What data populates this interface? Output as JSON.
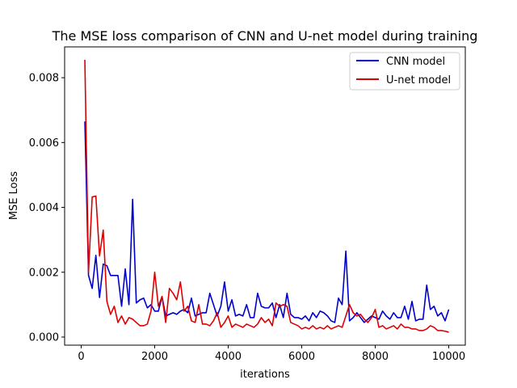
{
  "chart_data": {
    "type": "line",
    "title": "The MSE loss comparison of CNN and U-net model during training",
    "xlabel": "iterations",
    "ylabel": "MSE Loss",
    "xlim": [
      -450,
      10450
    ],
    "ylim": [
      -0.00025,
      0.00895
    ],
    "xticks": [
      0,
      2000,
      4000,
      6000,
      8000,
      10000
    ],
    "yticks": [
      0.0,
      0.002,
      0.004,
      0.006,
      0.008
    ],
    "xtick_labels": [
      "0",
      "2000",
      "4000",
      "6000",
      "8000",
      "10000"
    ],
    "ytick_labels": [
      "0.000",
      "0.002",
      "0.004",
      "0.006",
      "0.008"
    ],
    "grid": false,
    "legend_position": "top-right",
    "x": [
      100,
      200,
      300,
      400,
      500,
      600,
      700,
      800,
      900,
      1000,
      1100,
      1200,
      1300,
      1400,
      1500,
      1600,
      1700,
      1800,
      1900,
      2000,
      2100,
      2200,
      2300,
      2400,
      2500,
      2600,
      2700,
      2800,
      2900,
      3000,
      3100,
      3200,
      3300,
      3400,
      3500,
      3600,
      3700,
      3800,
      3900,
      4000,
      4100,
      4200,
      4300,
      4400,
      4500,
      4600,
      4700,
      4800,
      4900,
      5000,
      5100,
      5200,
      5300,
      5400,
      5500,
      5600,
      5700,
      5800,
      5900,
      6000,
      6100,
      6200,
      6300,
      6400,
      6500,
      6600,
      6700,
      6800,
      6900,
      7000,
      7100,
      7200,
      7300,
      7400,
      7500,
      7600,
      7700,
      7800,
      7900,
      8000,
      8100,
      8200,
      8300,
      8400,
      8500,
      8600,
      8700,
      8800,
      8900,
      9000,
      9100,
      9200,
      9300,
      9400,
      9500,
      9600,
      9700,
      9800,
      9900,
      10000
    ],
    "series": [
      {
        "name": "CNN model",
        "color": "#0000cc",
        "values": [
          0.00665,
          0.0019,
          0.0015,
          0.00252,
          0.00122,
          0.00225,
          0.0022,
          0.0019,
          0.0019,
          0.0019,
          0.00095,
          0.0021,
          0.001,
          0.00425,
          0.00105,
          0.00115,
          0.0012,
          0.0009,
          0.001,
          0.0008,
          0.0008,
          0.00125,
          0.00065,
          0.0007,
          0.00075,
          0.0007,
          0.0008,
          0.00085,
          0.00075,
          0.0012,
          0.00065,
          0.0007,
          0.00075,
          0.00075,
          0.00135,
          0.001,
          0.00065,
          0.00095,
          0.0017,
          0.0008,
          0.00115,
          0.00065,
          0.0007,
          0.00065,
          0.001,
          0.0006,
          0.0006,
          0.00135,
          0.00095,
          0.0009,
          0.0009,
          0.00105,
          0.0006,
          0.001,
          0.0006,
          0.00135,
          0.0007,
          0.0006,
          0.0006,
          0.00055,
          0.00065,
          0.0005,
          0.00075,
          0.0006,
          0.0008,
          0.00075,
          0.00065,
          0.0005,
          0.00045,
          0.0012,
          0.001,
          0.00265,
          0.0005,
          0.0006,
          0.00075,
          0.0006,
          0.00045,
          0.00055,
          0.00065,
          0.0006,
          0.00055,
          0.0008,
          0.00065,
          0.00055,
          0.00075,
          0.0006,
          0.0006,
          0.00095,
          0.00055,
          0.0011,
          0.0005,
          0.00055,
          0.00055,
          0.0016,
          0.00085,
          0.00095,
          0.00065,
          0.00075,
          0.0005,
          0.00085
        ]
      },
      {
        "name": "U-net model",
        "color": "#dd0000",
        "values": [
          0.00855,
          0.002,
          0.00432,
          0.00435,
          0.0025,
          0.0033,
          0.0011,
          0.0007,
          0.00095,
          0.00045,
          0.00065,
          0.0004,
          0.0006,
          0.00055,
          0.00045,
          0.00035,
          0.00035,
          0.0004,
          0.0008,
          0.002,
          0.00095,
          0.00125,
          0.00045,
          0.0015,
          0.00135,
          0.00115,
          0.0017,
          0.0008,
          0.00095,
          0.0005,
          0.00045,
          0.001,
          0.0004,
          0.0004,
          0.00035,
          0.0005,
          0.00075,
          0.0003,
          0.00045,
          0.00065,
          0.0003,
          0.0004,
          0.00035,
          0.0003,
          0.0004,
          0.00035,
          0.0003,
          0.0004,
          0.0006,
          0.00045,
          0.00055,
          0.00035,
          0.00105,
          0.00095,
          0.001,
          0.00095,
          0.00045,
          0.0004,
          0.00035,
          0.00025,
          0.0003,
          0.00025,
          0.00035,
          0.00025,
          0.0003,
          0.00025,
          0.00035,
          0.00025,
          0.0003,
          0.00035,
          0.0003,
          0.00065,
          0.001,
          0.00075,
          0.00065,
          0.0007,
          0.00055,
          0.00045,
          0.0006,
          0.00085,
          0.0003,
          0.00035,
          0.00025,
          0.0003,
          0.00035,
          0.00025,
          0.0004,
          0.0003,
          0.0003,
          0.00025,
          0.00025,
          0.0002,
          0.0002,
          0.00025,
          0.00035,
          0.0003,
          0.0002,
          0.0002,
          0.00018,
          0.00015
        ]
      }
    ]
  }
}
